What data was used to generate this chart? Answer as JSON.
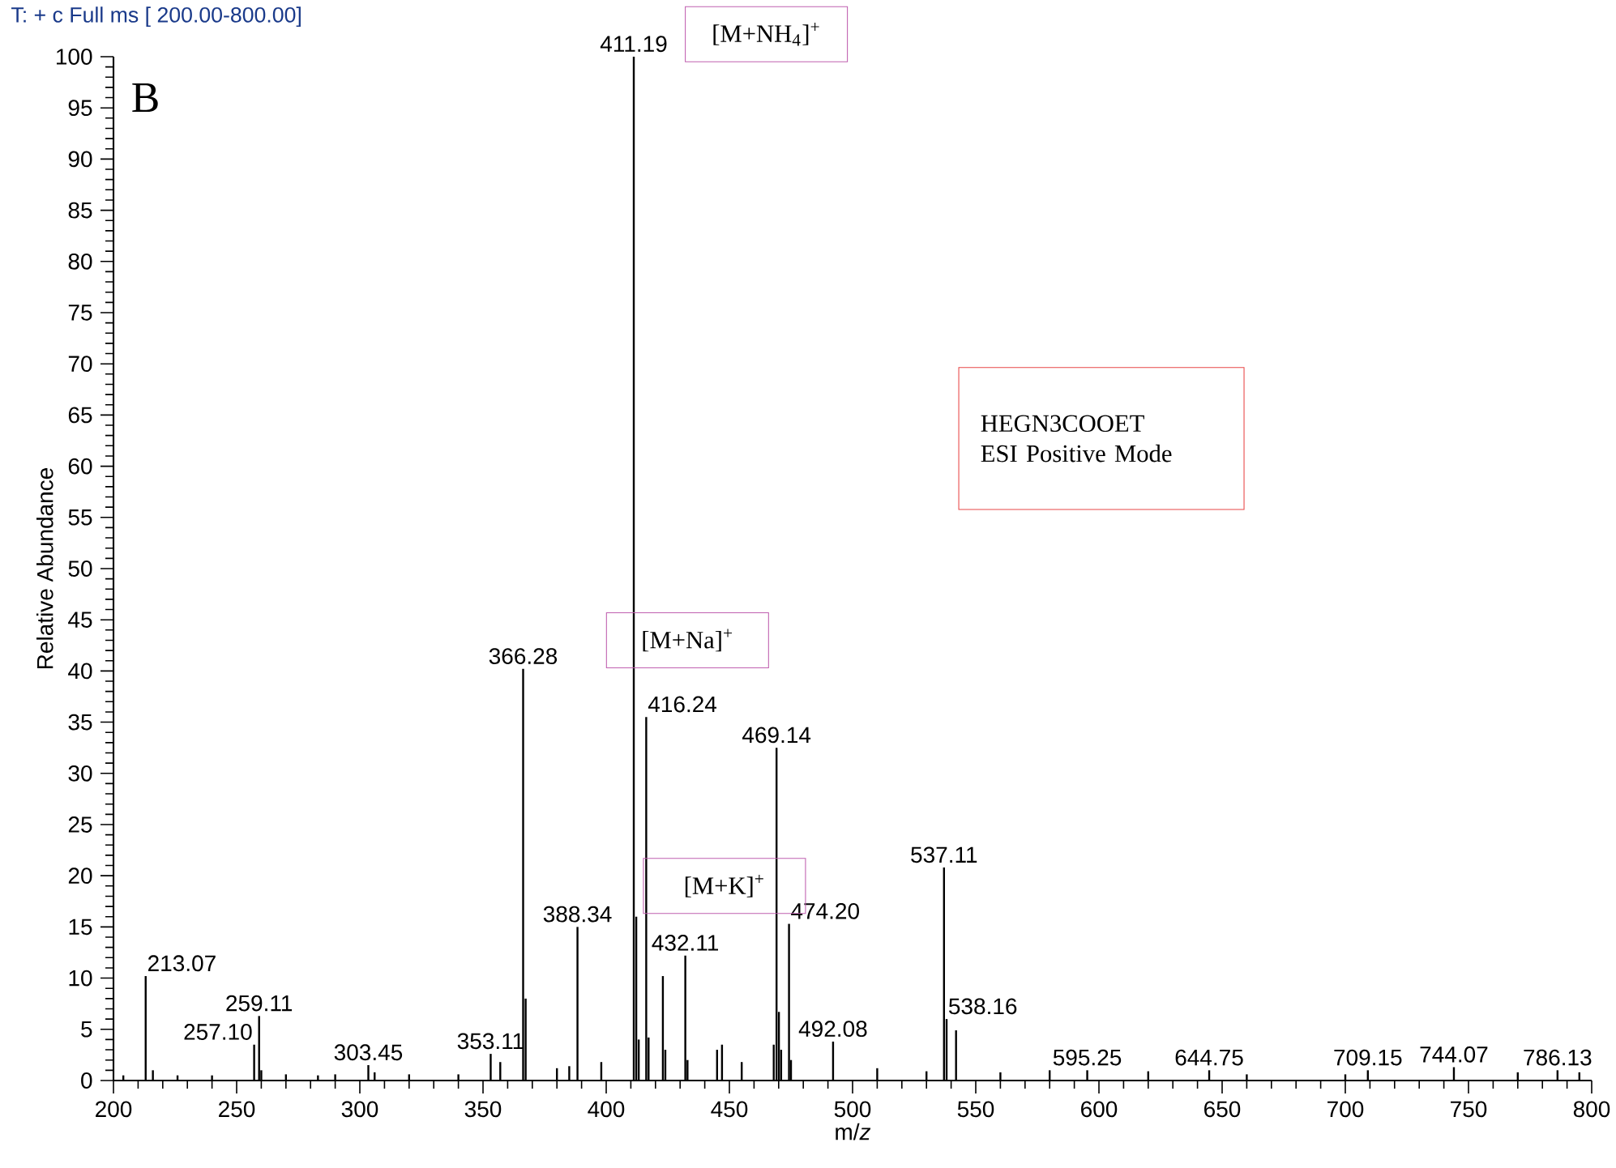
{
  "chart_data": {
    "type": "bar",
    "title": "T: + c Full ms [ 200.00-800.00]",
    "xlabel": "m/*z*",
    "ylabel": "Relative Abundance",
    "x": [
      204,
      213.07,
      216,
      226,
      240,
      257.1,
      259.11,
      260,
      270,
      283,
      290,
      303.45,
      306,
      320,
      340,
      353.11,
      357,
      366.28,
      367.3,
      380,
      385,
      388.34,
      398,
      411.19,
      412.2,
      413.2,
      416.24,
      417.2,
      423,
      424,
      432.11,
      433,
      445,
      447,
      455,
      468,
      469.14,
      470.1,
      471,
      474.2,
      475,
      492.08,
      510,
      530,
      537.11,
      538.16,
      542,
      560,
      580,
      595.25,
      620,
      644.75,
      660,
      700,
      709.15,
      744.07,
      770,
      786.13,
      795
    ],
    "values": [
      0.5,
      10.2,
      1,
      0.5,
      0.5,
      3.5,
      6.3,
      1,
      0.6,
      0.5,
      0.6,
      1.5,
      0.8,
      0.6,
      0.6,
      2.6,
      1.8,
      40.2,
      8,
      1.2,
      1.4,
      15,
      1.8,
      100,
      16,
      4,
      35.5,
      4.2,
      10.2,
      3,
      12.2,
      2,
      3,
      3.5,
      1.8,
      3.5,
      32.5,
      6.7,
      3,
      15.3,
      2,
      3.8,
      1.2,
      0.9,
      20.8,
      6.0,
      4.9,
      0.8,
      1,
      1,
      0.9,
      1,
      0.6,
      0.6,
      1,
      1.3,
      0.8,
      1,
      0.8
    ],
    "color": "#000000",
    "xlim": [
      200,
      800
    ],
    "ylim": [
      0,
      100
    ],
    "xticks": [
      200,
      250,
      300,
      350,
      400,
      450,
      500,
      550,
      600,
      650,
      700,
      750,
      800
    ],
    "yticks": [
      0,
      5,
      10,
      15,
      20,
      25,
      30,
      35,
      40,
      45,
      50,
      55,
      60,
      65,
      70,
      75,
      80,
      85,
      90,
      95,
      100
    ],
    "grid": false,
    "annotations": [
      {
        "text": "213.07",
        "x": 213.07,
        "y": 10.2
      },
      {
        "text": "257.10",
        "x": 257.1,
        "y": 3.5
      },
      {
        "text": "259.11",
        "x": 259.11,
        "y": 6.3
      },
      {
        "text": "303.45",
        "x": 303.45,
        "y": 1.5
      },
      {
        "text": "353.11",
        "x": 353.11,
        "y": 2.6
      },
      {
        "text": "366.28",
        "x": 366.28,
        "y": 40.2
      },
      {
        "text": "388.34",
        "x": 388.34,
        "y": 15
      },
      {
        "text": "411.19",
        "x": 411.19,
        "y": 100
      },
      {
        "text": "416.24",
        "x": 416.24,
        "y": 35.5
      },
      {
        "text": "432.11",
        "x": 432.11,
        "y": 12.2
      },
      {
        "text": "469.14",
        "x": 469.14,
        "y": 32.5
      },
      {
        "text": "474.20",
        "x": 474.2,
        "y": 15.3
      },
      {
        "text": "492.08",
        "x": 492.08,
        "y": 3.8
      },
      {
        "text": "537.11",
        "x": 537.11,
        "y": 20.8
      },
      {
        "text": "538.16",
        "x": 538.16,
        "y": 6.0
      },
      {
        "text": "595.25",
        "x": 595.25,
        "y": 1
      },
      {
        "text": "644.75",
        "x": 644.75,
        "y": 1
      },
      {
        "text": "709.15",
        "x": 709.15,
        "y": 1
      },
      {
        "text": "744.07",
        "x": 744.07,
        "y": 1.3
      },
      {
        "text": "786.13",
        "x": 786.13,
        "y": 1
      },
      "B",
      "[M+NH$_{4}$]$^{+}$",
      "[M+Na]$^{+}$",
      "[M+K]$^{+}$",
      "HEGN3COOET",
      "ESI Positive Mode"
    ]
  }
}
